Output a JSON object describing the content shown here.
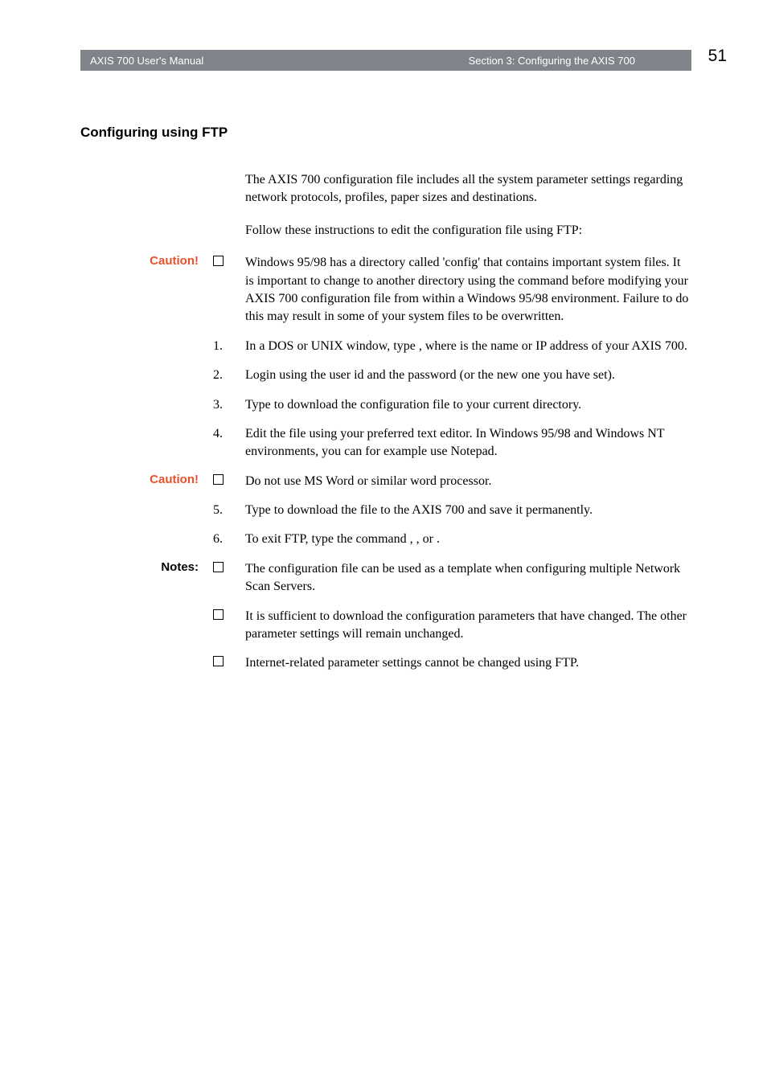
{
  "header": {
    "left": "AXIS 700 User's Manual",
    "right": "Section 3: Configuring the AXIS 700",
    "page_number": "51"
  },
  "section_title": "Configuring using FTP",
  "intro_para1": "The AXIS 700 configuration file includes all the system parameter settings regarding network protocols, profiles, paper sizes and destinations.",
  "intro_para2": "Follow these instructions to edit the configuration file using FTP:",
  "caution_label": "Caution!",
  "notes_label": "Notes:",
  "caution1_text": "Windows 95/98 has a directory called 'config' that contains important system files. It is important to change to another directory using the       command before modifying your AXIS 700 configuration file from within a Windows 95/98 environment. Failure to do this may result in some of your system files to be overwritten.",
  "step1_num": "1.",
  "step1_text": "In a DOS or UNIX window, type                                   , where                        is the name or IP address of your AXIS 700.",
  "step2_num": "2.",
  "step2_text": "Login using the user id             and the password             (or the new one you have set).",
  "step3_num": "3.",
  "step3_text": "Type                              to download the configuration file to your current directory.",
  "step4_num": "4.",
  "step4_text": "Edit the file using your preferred text editor. In Windows 95/98 and Windows NT environments, you can for example use Notepad.",
  "caution2_text": "Do not use MS Word or similar word processor.",
  "step5_num": "5.",
  "step5_text": "Type                              to download the file to the AXIS 700 and save it permanently.",
  "step6_num": "6.",
  "step6_text": "To exit FTP, type the command          ,        , or           .",
  "note1_text": "The configuration file can be used as a template when configuring multiple Network Scan Servers.",
  "note2_text": "It is sufficient to download the configuration parameters that have changed. The other parameter settings will remain unchanged.",
  "note3_text": "Internet-related parameter settings cannot be changed using FTP."
}
